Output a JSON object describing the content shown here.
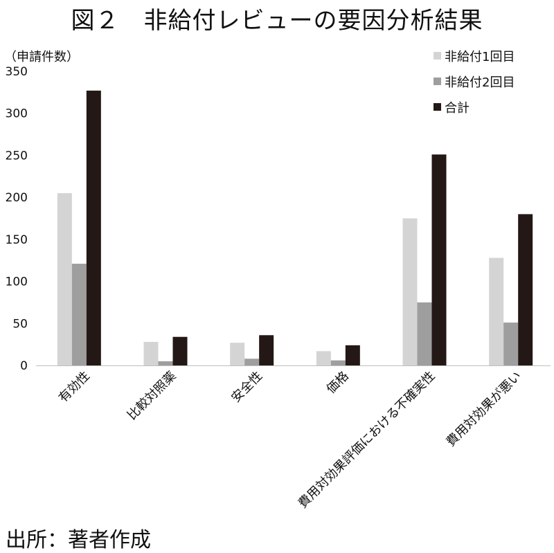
{
  "title": "図２　非給付レビューの要因分析結果",
  "y_unit_label": "（申請件数）",
  "source": "出所：著者作成",
  "chart_data": {
    "type": "bar",
    "categories": [
      "有効性",
      "比較対照薬",
      "安全性",
      "価格",
      "費用対効果評価における不確実性",
      "費用対効果が悪い"
    ],
    "series": [
      {
        "name": "非給付1回目",
        "color": "#d4d4d4",
        "values": [
          205,
          28,
          27,
          17,
          175,
          128
        ]
      },
      {
        "name": "非給付2回目",
        "color": "#9e9e9e",
        "values": [
          121,
          5,
          8,
          6,
          75,
          51
        ]
      },
      {
        "name": "合計",
        "color": "#231815",
        "values": [
          327,
          34,
          36,
          24,
          251,
          180
        ]
      }
    ],
    "ylim": [
      0,
      350
    ],
    "yticks": [
      0,
      50,
      100,
      150,
      200,
      250,
      300,
      350
    ],
    "grid": false,
    "legend_position": "top-right"
  }
}
